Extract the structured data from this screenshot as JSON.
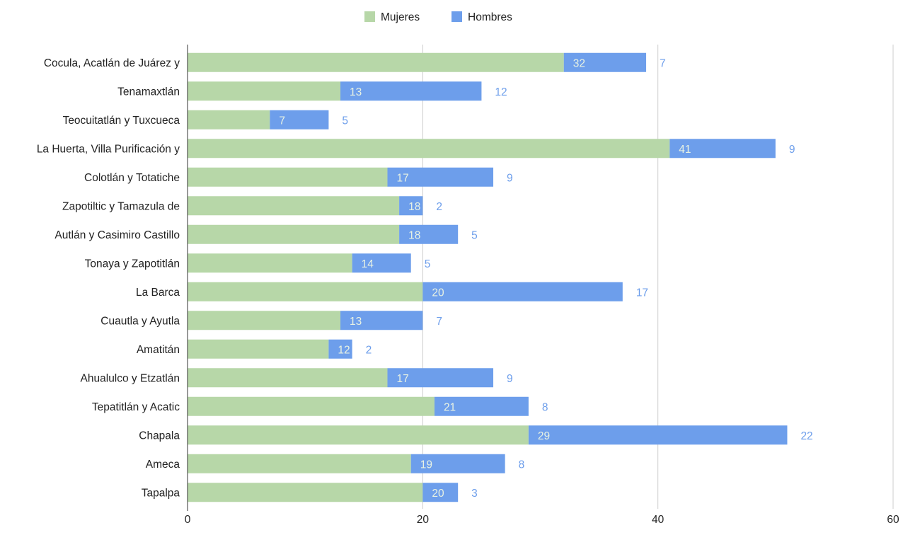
{
  "chart_data": {
    "type": "bar",
    "orientation": "horizontal",
    "stacked": true,
    "categories": [
      "Cocula, Acatlán de Juárez y",
      "Tenamaxtlán",
      "Teocuitatlán y Tuxcueca",
      "La Huerta, Villa Purificación y",
      "Colotlán y Totatiche",
      "Zapotiltic y Tamazula de",
      "Autlán y Casimiro Castillo",
      "Tonaya y Zapotitlán",
      "La Barca",
      "Cuautla y Ayutla",
      "Amatitán",
      "Ahualulco y Etzatlán",
      "Tepatitlán y Acatic",
      "Chapala",
      "Ameca",
      "Tapalpa"
    ],
    "series": [
      {
        "name": "Mujeres",
        "color": "#b7d7a8",
        "label_color": "#e8f2e3",
        "values": [
          32,
          13,
          7,
          41,
          17,
          18,
          18,
          14,
          20,
          13,
          12,
          17,
          21,
          29,
          19,
          20
        ]
      },
      {
        "name": "Hombres",
        "color": "#6d9eeb",
        "label_color": "#6d9eeb",
        "values": [
          7,
          12,
          5,
          9,
          9,
          2,
          5,
          5,
          17,
          7,
          2,
          9,
          8,
          22,
          8,
          3
        ]
      }
    ],
    "xlim": [
      0,
      60
    ],
    "xticks": [
      "0",
      "20",
      "40",
      "60"
    ],
    "grid": true,
    "legend_position": "top"
  }
}
